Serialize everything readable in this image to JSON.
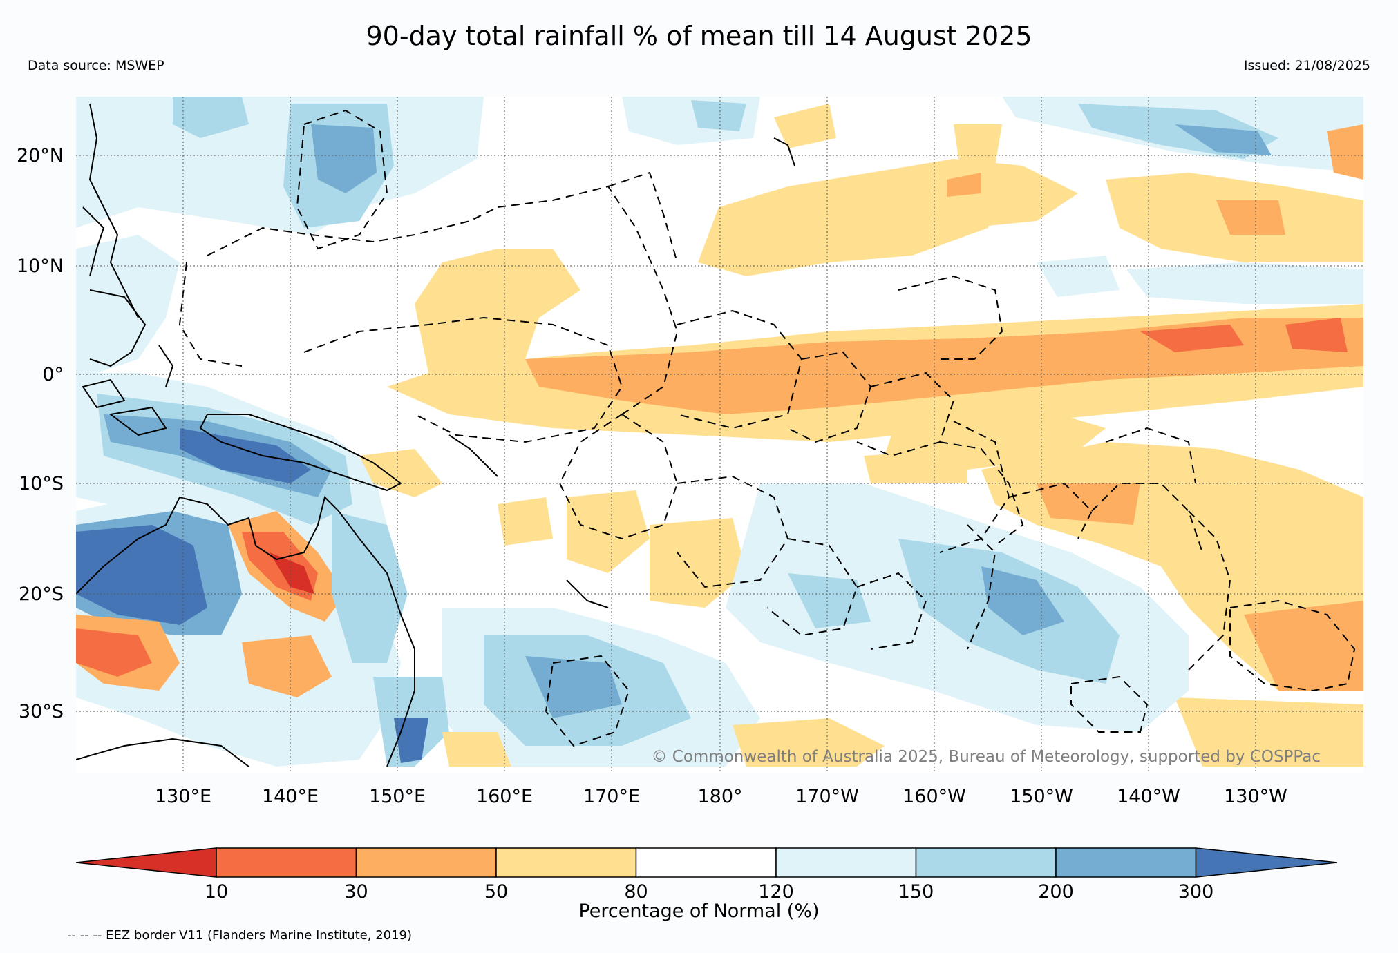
{
  "title": "90-day total rainfall % of mean till 14 August 2025",
  "data_source": "Data source: MSWEP",
  "issued": "Issued: 21/08/2025",
  "copyright": "© Commonwealth of Australia 2025, Bureau of Meteorology, supported by COSPPac",
  "lat_labels": [
    "20°N",
    "10°N",
    "0°",
    "10°S",
    "20°S",
    "30°S"
  ],
  "lon_labels": [
    "130°E",
    "140°E",
    "150°E",
    "160°E",
    "170°E",
    "180°",
    "170°W",
    "160°W",
    "150°W",
    "140°W",
    "130°W"
  ],
  "colorbar": {
    "title": "Percentage of Normal (%)",
    "ticks": [
      "10",
      "30",
      "50",
      "80",
      "120",
      "150",
      "200",
      "300"
    ],
    "colors": [
      "#d73027",
      "#f46d43",
      "#fdae61",
      "#fee090",
      "#ffffff",
      "#e0f3f8",
      "#abd9e9",
      "#74add1",
      "#4575b4"
    ]
  },
  "legend_note": "-- -- -- EEZ border V11 (Flanders Marine Institute, 2019)"
}
